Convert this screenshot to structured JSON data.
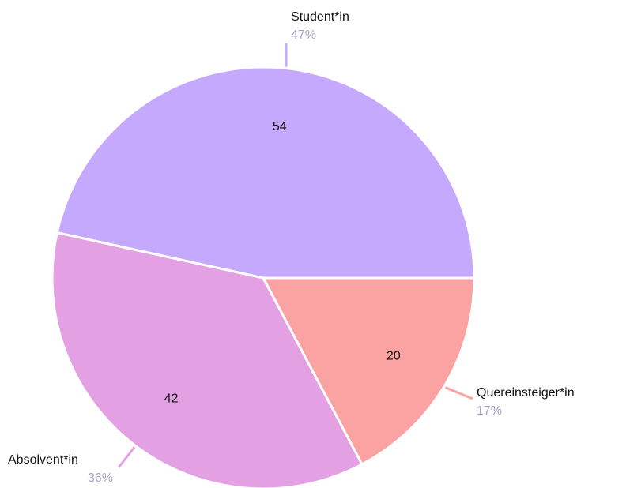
{
  "chart_data": {
    "type": "pie",
    "categories": [
      "Student*in",
      "Absolvent*in",
      "Quereinsteiger*in"
    ],
    "values": [
      54,
      42,
      20
    ],
    "percent_labels": [
      "47%",
      "36%",
      "17%"
    ],
    "colors": [
      "#c5a9fe",
      "#e3a1e4",
      "#fba3a3"
    ]
  }
}
